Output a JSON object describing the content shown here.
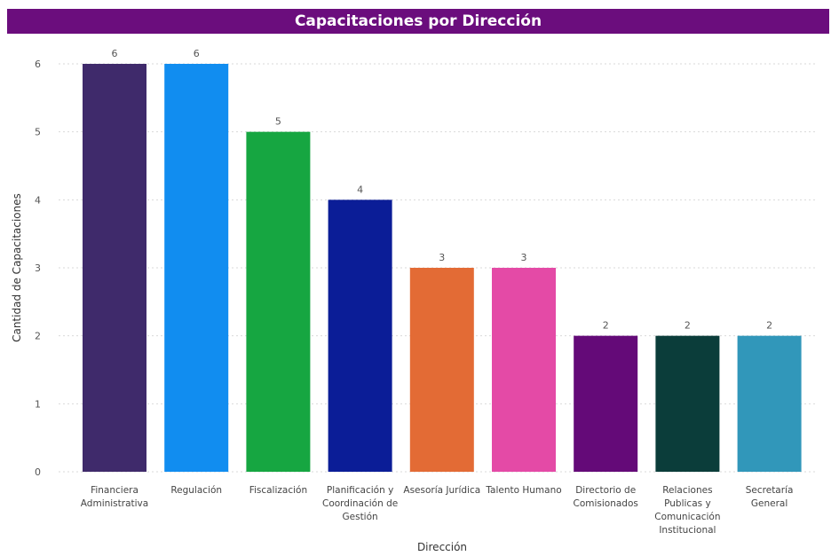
{
  "chart_data": {
    "type": "bar",
    "title": "Capacitaciones por Dirección",
    "xlabel": "Dirección",
    "ylabel": "Cantidad de Capacitaciones",
    "ylim": [
      0,
      6
    ],
    "yticks": [
      "0",
      "1",
      "2",
      "3",
      "4",
      "5",
      "6"
    ],
    "grid": true,
    "categories": [
      "Financiera Administrativa",
      "Regulación",
      "Fiscalización",
      "Planificación y Coordinación de Gestión",
      "Asesoría Jurídica",
      "Talento Humano",
      "Directorio de Comisionados",
      "Relaciones Publicas y Comunicación Institucional",
      "Secretaría General"
    ],
    "category_lines": [
      [
        "Financiera",
        "Administrativa"
      ],
      [
        "Regulación"
      ],
      [
        "Fiscalización"
      ],
      [
        "Planificación y",
        "Coordinación de",
        "Gestión"
      ],
      [
        "Asesoría Jurídica"
      ],
      [
        "Talento Humano"
      ],
      [
        "Directorio de",
        "Comisionados"
      ],
      [
        "Relaciones",
        "Publicas y",
        "Comunicación",
        "Institucional"
      ],
      [
        "Secretaría",
        "General"
      ]
    ],
    "values": [
      6,
      6,
      5,
      4,
      3,
      3,
      2,
      2,
      2
    ],
    "data_labels": [
      "6",
      "6",
      "5",
      "4",
      "3",
      "3",
      "2",
      "2",
      "2"
    ],
    "colors": [
      "#3f2a6b",
      "#118df0",
      "#16a641",
      "#0b1d97",
      "#e36b35",
      "#e44aa6",
      "#640a78",
      "#0b3d3a",
      "#3197ba"
    ]
  },
  "style": {
    "title_bar_color": "#6b0d7d",
    "gridline_color": "#d9d9d9"
  }
}
